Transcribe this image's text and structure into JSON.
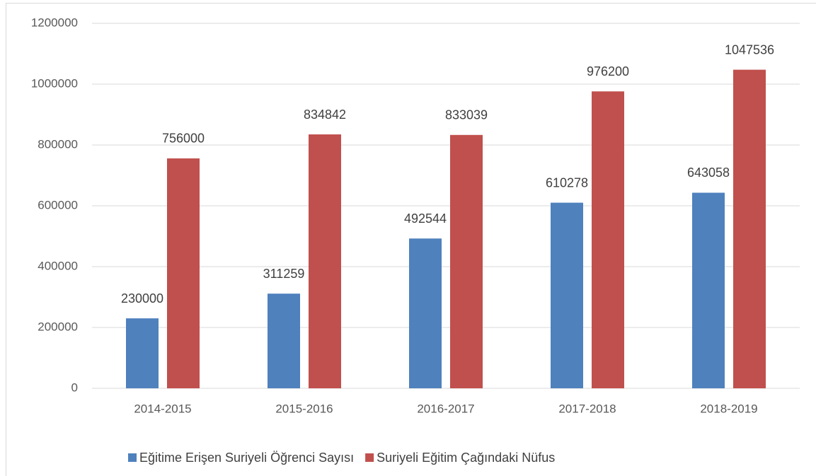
{
  "chart_data": {
    "type": "bar",
    "categories": [
      "2014-2015",
      "2015-2016",
      "2016-2017",
      "2017-2018",
      "2018-2019"
    ],
    "series": [
      {
        "name": "Eğitime Erişen Suriyeli Öğrenci Sayısı",
        "color": "#4f81bd",
        "values": [
          230000,
          311259,
          492544,
          610278,
          643058
        ]
      },
      {
        "name": "Suriyeli Eğitim Çağındaki Nüfus",
        "color": "#c0504d",
        "values": [
          756000,
          834842,
          833039,
          976200,
          1047536
        ]
      }
    ],
    "ylim": [
      0,
      1200000
    ],
    "yticks": [
      0,
      200000,
      400000,
      600000,
      800000,
      1000000,
      1200000
    ],
    "grid": true,
    "legend": "bottom"
  }
}
